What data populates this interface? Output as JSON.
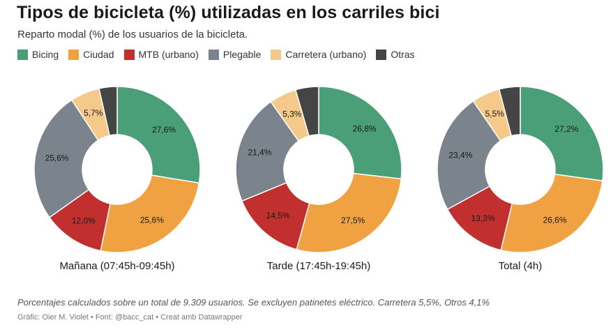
{
  "title": "Tipos de bicicleta (%) utilizadas en los carriles bici",
  "subtitle": "Reparto modal (%) de los usuarios de la bicicleta.",
  "legend": [
    {
      "label": "Bicing",
      "color": "#4a9e78"
    },
    {
      "label": "Ciudad",
      "color": "#f0a142"
    },
    {
      "label": "MTB (urbano)",
      "color": "#c1302e"
    },
    {
      "label": "Plegable",
      "color": "#7b838c"
    },
    {
      "label": "Carretera (urbano)",
      "color": "#f5c98a"
    },
    {
      "label": "Otras",
      "color": "#454545"
    }
  ],
  "note": "Porcentajes calculados sobre un total de 9.309 usuarios. Se excluyen patinetes eléctrico. Carretera 5,5%, Otros 4,1%",
  "credits": "Gràfic: Oier M. Violet • Font: @bacc_cat • Creat amb Datawrapper",
  "chart_data": [
    {
      "type": "pie",
      "title": "Mañana (07:45h-09:45h)",
      "categories": [
        "Bicing",
        "Ciudad",
        "MTB (urbano)",
        "Plegable",
        "Carretera (urbano)",
        "Otras"
      ],
      "values": [
        27.6,
        25.6,
        12.0,
        25.6,
        5.7,
        3.5
      ],
      "labels": [
        "27,6%",
        "25,6%",
        "12,0%",
        "25,6%",
        "5,7%",
        ""
      ]
    },
    {
      "type": "pie",
      "title": "Tarde (17:45h-19:45h)",
      "categories": [
        "Bicing",
        "Ciudad",
        "MTB (urbano)",
        "Plegable",
        "Carretera (urbano)",
        "Otras"
      ],
      "values": [
        26.8,
        27.5,
        14.5,
        21.4,
        5.3,
        4.5
      ],
      "labels": [
        "26,8%",
        "27,5%",
        "14,5%",
        "21,4%",
        "5,3%",
        ""
      ]
    },
    {
      "type": "pie",
      "title": "Total (4h)",
      "categories": [
        "Bicing",
        "Ciudad",
        "MTB (urbano)",
        "Plegable",
        "Carretera (urbano)",
        "Otras"
      ],
      "values": [
        27.2,
        26.6,
        13.3,
        23.4,
        5.5,
        4.1
      ],
      "labels": [
        "27,2%",
        "26,6%",
        "13,3%",
        "23,4%",
        "5,5%",
        ""
      ]
    }
  ]
}
